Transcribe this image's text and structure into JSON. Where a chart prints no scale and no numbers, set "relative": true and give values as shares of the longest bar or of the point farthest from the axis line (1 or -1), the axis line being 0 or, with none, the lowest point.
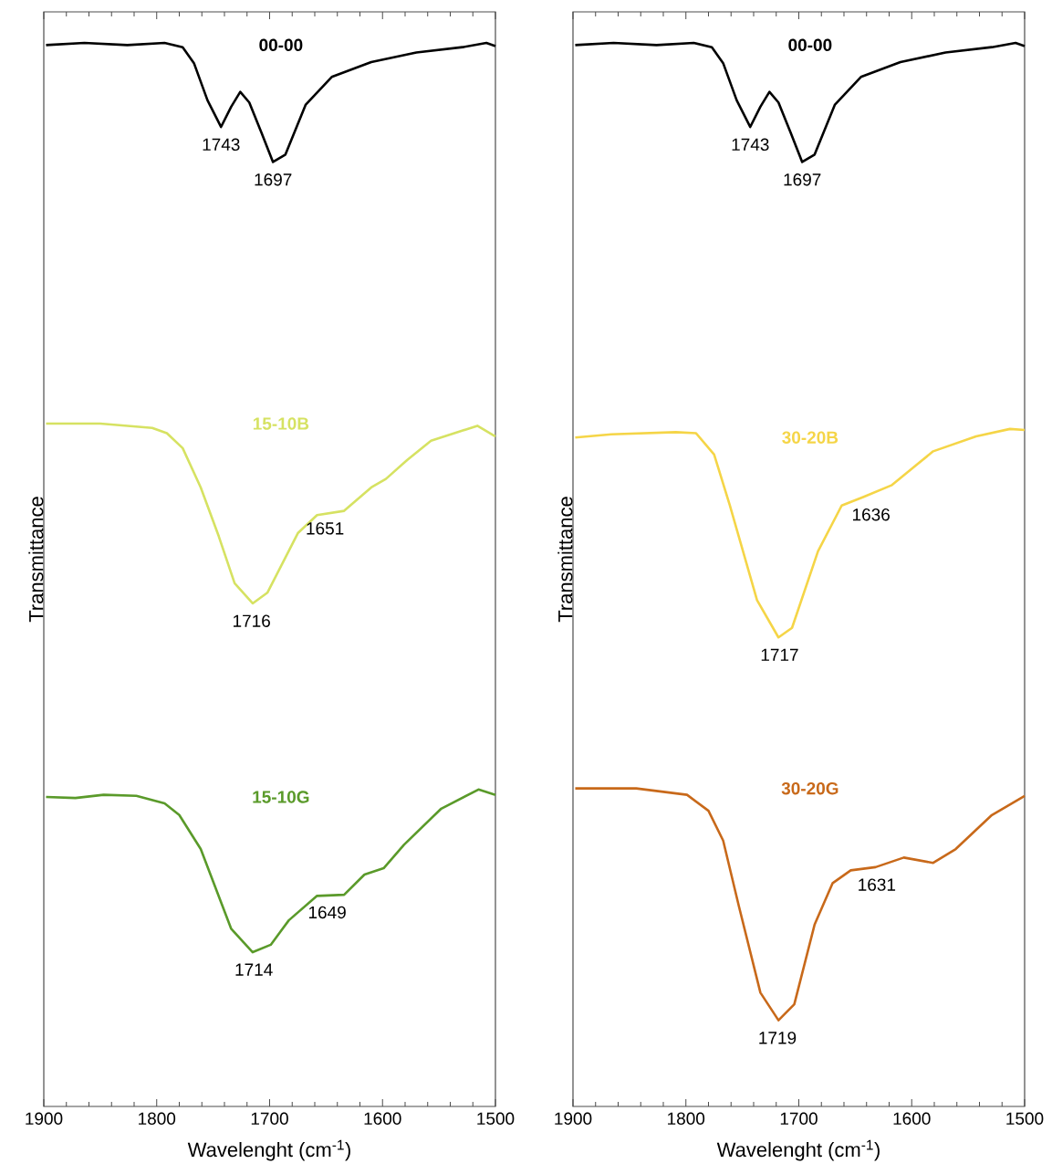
{
  "chart_data": [
    {
      "type": "line",
      "relative": true,
      "xlabel": "Wavelenght (cm$^{-1}$)",
      "ylabel": "Transmittance",
      "xlim": [
        1900,
        1500
      ],
      "xticks": [
        1900,
        1800,
        1700,
        1600,
        1500
      ],
      "series": [
        {
          "name": "00-00",
          "color": "#000000",
          "x": [
            1898,
            1864,
            1826,
            1793,
            1777,
            1767,
            1755,
            1743,
            1734,
            1726,
            1718,
            1707,
            1697,
            1686,
            1668,
            1645,
            1610,
            1570,
            1529,
            1508,
            1500
          ],
          "values": [
            0.998,
            1,
            0.998,
            1,
            0.996,
            0.981,
            0.946,
            0.921,
            0.94,
            0.954,
            0.944,
            0.915,
            0.888,
            0.895,
            0.942,
            0.968,
            0.982,
            0.991,
            0.996,
            1,
            0.997
          ]
        },
        {
          "name": "15-10B",
          "color": "#d6e262",
          "x": [
            1898,
            1850,
            1804,
            1791,
            1777,
            1761,
            1745,
            1731,
            1715,
            1702,
            1675,
            1658,
            1634,
            1610,
            1597,
            1578,
            1557,
            1516,
            1500
          ],
          "values": [
            0.642,
            0.642,
            0.638,
            0.633,
            0.619,
            0.582,
            0.536,
            0.492,
            0.473,
            0.483,
            0.539,
            0.556,
            0.56,
            0.582,
            0.59,
            0.608,
            0.626,
            0.64,
            0.63
          ]
        },
        {
          "name": "15-10G",
          "color": "#5a9a2a",
          "x": [
            1898,
            1872,
            1847,
            1818,
            1793,
            1780,
            1761,
            1734,
            1715,
            1699,
            1683,
            1658,
            1634,
            1616,
            1599,
            1581,
            1548,
            1515,
            1500
          ],
          "values": [
            0.291,
            0.29,
            0.293,
            0.292,
            0.285,
            0.274,
            0.242,
            0.167,
            0.145,
            0.152,
            0.175,
            0.198,
            0.199,
            0.218,
            0.224,
            0.246,
            0.28,
            0.298,
            0.293
          ]
        }
      ],
      "annotations": [
        {
          "text": "1743",
          "x": 1743,
          "y": 0.921
        },
        {
          "text": "1697",
          "x": 1697,
          "y": 0.888
        },
        {
          "text": "1716",
          "x": 1716,
          "y": 0.473
        },
        {
          "text": "1651",
          "x": 1651,
          "y": 0.56
        },
        {
          "text": "1714",
          "x": 1714,
          "y": 0.145
        },
        {
          "text": "1649",
          "x": 1649,
          "y": 0.199
        }
      ]
    },
    {
      "type": "line",
      "relative": true,
      "xlabel": "Wavelenght (cm$^{-1}$)",
      "ylabel": "Transmittance",
      "xlim": [
        1900,
        1500
      ],
      "xticks": [
        1900,
        1800,
        1700,
        1600,
        1500
      ],
      "series": [
        {
          "name": "00-00",
          "color": "#000000",
          "x": [
            1898,
            1864,
            1826,
            1793,
            1777,
            1767,
            1755,
            1743,
            1734,
            1726,
            1718,
            1707,
            1697,
            1686,
            1668,
            1645,
            1610,
            1570,
            1529,
            1508,
            1500
          ],
          "values": [
            0.998,
            1,
            0.998,
            1,
            0.996,
            0.981,
            0.946,
            0.921,
            0.94,
            0.954,
            0.944,
            0.915,
            0.888,
            0.895,
            0.942,
            0.968,
            0.982,
            0.991,
            0.996,
            1,
            0.997
          ]
        },
        {
          "name": "30-20B",
          "color": "#f5d547",
          "x": [
            1898,
            1866,
            1809,
            1791,
            1775,
            1761,
            1737,
            1718,
            1706,
            1683,
            1662,
            1643,
            1618,
            1581,
            1543,
            1513,
            1500
          ],
          "values": [
            0.629,
            0.632,
            0.634,
            0.633,
            0.613,
            0.565,
            0.476,
            0.441,
            0.45,
            0.522,
            0.565,
            0.573,
            0.584,
            0.616,
            0.63,
            0.637,
            0.636
          ]
        },
        {
          "name": "30-20G",
          "color": "#c8691a",
          "x": [
            1898,
            1844,
            1799,
            1780,
            1767,
            1753,
            1734,
            1718,
            1704,
            1686,
            1670,
            1654,
            1632,
            1607,
            1581,
            1561,
            1529,
            1500
          ],
          "values": [
            0.299,
            0.299,
            0.293,
            0.278,
            0.25,
            0.188,
            0.107,
            0.081,
            0.096,
            0.171,
            0.21,
            0.222,
            0.225,
            0.234,
            0.229,
            0.242,
            0.274,
            0.292
          ]
        }
      ],
      "annotations": [
        {
          "text": "1743",
          "x": 1743,
          "y": 0.921
        },
        {
          "text": "1697",
          "x": 1697,
          "y": 0.888
        },
        {
          "text": "1717",
          "x": 1717,
          "y": 0.441
        },
        {
          "text": "1636",
          "x": 1636,
          "y": 0.573
        },
        {
          "text": "1719",
          "x": 1719,
          "y": 0.081
        },
        {
          "text": "1631",
          "x": 1631,
          "y": 0.225
        }
      ]
    }
  ]
}
